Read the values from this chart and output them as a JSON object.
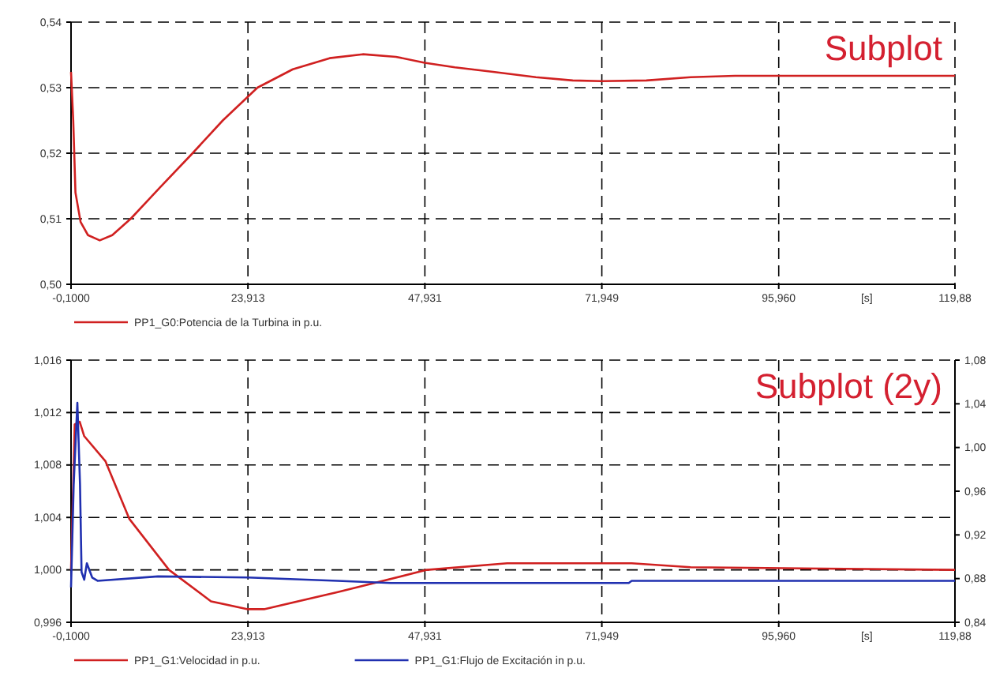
{
  "chart_data": [
    {
      "type": "line",
      "title": "Subplot",
      "xlabel": "[s]",
      "legend": "bottom",
      "grid": true,
      "line_style": "solid",
      "xlim": [
        -0.1,
        119.88
      ],
      "xticks": [
        {
          "value": -0.1,
          "label": "-0,1000"
        },
        {
          "value": 23.913,
          "label": "23,913"
        },
        {
          "value": 47.931,
          "label": "47,931"
        },
        {
          "value": 71.949,
          "label": "71,949"
        },
        {
          "value": 95.96,
          "label": "95,960"
        },
        {
          "value": 119.88,
          "label": "119,88"
        }
      ],
      "ylim": [
        0.5,
        0.54
      ],
      "yticks": [
        {
          "value": 0.5,
          "label": "0,50"
        },
        {
          "value": 0.51,
          "label": "0,51"
        },
        {
          "value": 0.52,
          "label": "0,52"
        },
        {
          "value": 0.53,
          "label": "0,53"
        },
        {
          "value": 0.54,
          "label": "0,54"
        }
      ],
      "series": [
        {
          "name": "PP1_G0:Potencia de la Turbina in p.u.",
          "color": "#d02020",
          "x": [
            -0.1,
            0.2,
            0.5,
            1.2,
            2.2,
            3.8,
            5.5,
            8.0,
            12.0,
            16.4,
            20.5,
            25.2,
            30.0,
            35.0,
            39.5,
            44.0,
            47.9,
            52.0,
            57.2,
            63.0,
            68.0,
            71.9,
            78.0,
            84.0,
            90.0,
            95.96,
            105.0,
            119.88
          ],
          "values": [
            0.5324,
            0.525,
            0.514,
            0.5095,
            0.5075,
            0.5067,
            0.5075,
            0.51,
            0.5148,
            0.52,
            0.525,
            0.53,
            0.5328,
            0.5345,
            0.5351,
            0.5347,
            0.5338,
            0.5331,
            0.5324,
            0.5316,
            0.5311,
            0.531,
            0.5311,
            0.5316,
            0.5318,
            0.5318,
            0.5318,
            0.5318
          ]
        }
      ]
    },
    {
      "type": "line",
      "title": "Subplot (2y)",
      "xlabel": "[s]",
      "legend": "bottom",
      "grid": true,
      "line_style": "solid",
      "xlim": [
        -0.1,
        119.88
      ],
      "xticks": [
        {
          "value": -0.1,
          "label": "-0,1000"
        },
        {
          "value": 23.913,
          "label": "23,913"
        },
        {
          "value": 47.931,
          "label": "47,931"
        },
        {
          "value": 71.949,
          "label": "71,949"
        },
        {
          "value": 95.96,
          "label": "95,960"
        },
        {
          "value": 119.88,
          "label": "119,88"
        }
      ],
      "ylim": [
        0.996,
        1.016
      ],
      "yticks": [
        {
          "value": 0.996,
          "label": "0,996"
        },
        {
          "value": 1.0,
          "label": "1,000"
        },
        {
          "value": 1.004,
          "label": "1,004"
        },
        {
          "value": 1.008,
          "label": "1,008"
        },
        {
          "value": 1.012,
          "label": "1,012"
        },
        {
          "value": 1.016,
          "label": "1,016"
        }
      ],
      "y2lim": [
        0.84,
        1.08
      ],
      "y2ticks": [
        {
          "value": 0.84,
          "label": "0,84"
        },
        {
          "value": 0.88,
          "label": "0,88"
        },
        {
          "value": 0.92,
          "label": "0,92"
        },
        {
          "value": 0.96,
          "label": "0,96"
        },
        {
          "value": 1.0,
          "label": "1,00"
        },
        {
          "value": 1.04,
          "label": "1,04"
        },
        {
          "value": 1.08,
          "label": "1,08"
        }
      ],
      "series": [
        {
          "name": "PP1_G1:Velocidad in p.u.",
          "color": "#d02020",
          "x": [
            -0.1,
            0.4,
            1.08,
            1.69,
            4.56,
            7.8,
            13.2,
            18.9,
            23.9,
            26.1,
            36.1,
            48.2,
            59.1,
            76.0,
            84.0,
            119.88
          ],
          "values": [
            1.0,
            1.0111,
            1.0113,
            1.0102,
            1.0083,
            1.0039,
            1.0,
            0.9976,
            0.997,
            0.997,
            0.9983,
            1.0,
            1.0005,
            1.0005,
            1.0002,
            1.0
          ]
        },
        {
          "name": "PP1_G1:Flujo de Excitación in p.u.",
          "color": "#2030b0",
          "axis": "y2",
          "x": [
            -0.1,
            0.26,
            0.76,
            1.12,
            1.33,
            1.69,
            2.05,
            2.77,
            3.5,
            11.7,
            23.9,
            36.1,
            43.3,
            75.6,
            76.0,
            119.88
          ],
          "values": [
            0.872,
            0.966,
            1.041,
            0.966,
            0.886,
            0.879,
            0.894,
            0.881,
            0.878,
            0.882,
            0.881,
            0.878,
            0.876,
            0.876,
            0.878,
            0.878
          ]
        }
      ]
    }
  ]
}
